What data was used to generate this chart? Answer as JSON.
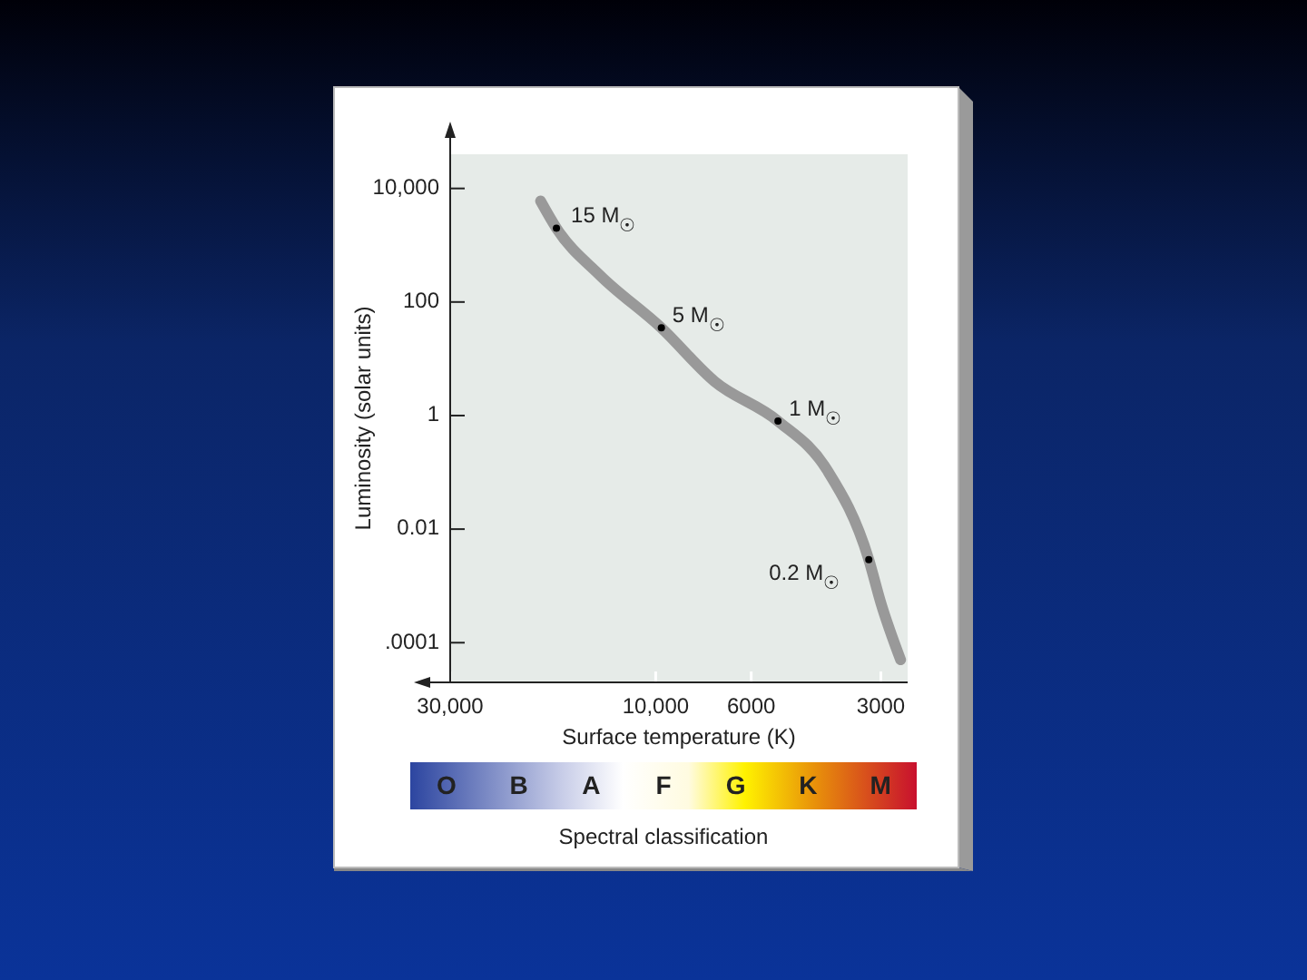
{
  "chart_data": {
    "type": "line",
    "xlabel": "Surface temperature (K)",
    "ylabel": "Luminosity (solar units)",
    "log": "xy",
    "grid": false,
    "xlim": [
      30000,
      2600
    ],
    "ylim": [
      2e-05,
      40000
    ],
    "xticks": [
      {
        "value": 30000,
        "label": "30,000"
      },
      {
        "value": 10000,
        "label": "10,000"
      },
      6000,
      3000
    ],
    "yticks": [
      {
        "value": 10000,
        "label": "10,000"
      },
      100,
      1,
      0.01,
      {
        "value": 0.0001,
        "label": ".0001"
      }
    ],
    "series": [
      {
        "color": "#999999",
        "marker": "none",
        "x": [
          18500,
          17000,
          13500,
          9700,
          7300,
          5200,
          4000,
          3200,
          3000,
          2700
        ],
        "values": [
          6000,
          2000,
          300,
          35,
          4,
          0.8,
          0.11,
          0.0029,
          0.0005,
          5e-05
        ]
      },
      {
        "type": "scatter",
        "color": "#000000",
        "marker": "circle",
        "x": [
          17000,
          9700,
          5200,
          3200
        ],
        "values": [
          2000,
          35,
          0.8,
          0.0029
        ]
      }
    ],
    "annotations": [
      {
        "text": "15 M$_{☉}$",
        "x": 17000,
        "y": 2000
      },
      {
        "text": "5 M$_{☉}$",
        "x": 9700,
        "y": 35
      },
      {
        "text": "1 M$_{☉}$",
        "x": 5200,
        "y": 0.8
      },
      {
        "text": "0.2 M$_{☉}$",
        "x": 3200,
        "y": 0.0029
      },
      "O",
      "B",
      "A",
      "F",
      "G",
      "K",
      "M",
      "Spectral classification"
    ]
  }
}
